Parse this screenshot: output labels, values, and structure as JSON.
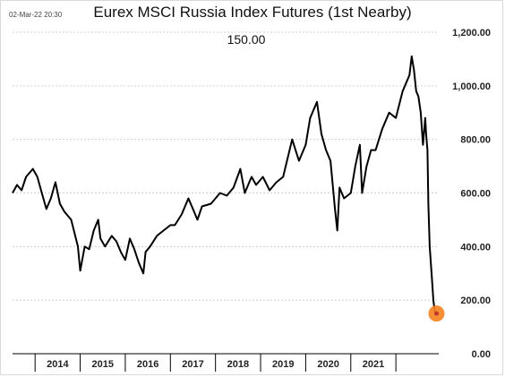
{
  "timestamp": "02-Mar-22 20:30",
  "chart_data": {
    "type": "line",
    "title": "Eurex MSCI Russia Index Futures (1st Nearby)",
    "annotation": "150.00",
    "xlabel": "",
    "ylabel": "",
    "ylim": [
      0,
      1200
    ],
    "y_ticks": [
      "0.00",
      "200.00",
      "400.00",
      "600.00",
      "800.00",
      "1,000.00",
      "1,200.00"
    ],
    "x_tick_labels": [
      "2014",
      "2015",
      "2016",
      "2017",
      "2018",
      "2019",
      "2020",
      "2021"
    ],
    "grid": true,
    "legend": "none",
    "line_color": "#000000",
    "marker_color": "#f58220",
    "last_value": 150,
    "series": [
      {
        "x": [
          2013.0,
          2013.1,
          2013.2,
          2013.3,
          2013.45,
          2013.55,
          2013.65,
          2013.75,
          2013.85,
          2013.95,
          2014.05,
          2014.15,
          2014.3,
          2014.45,
          2014.5,
          2014.6,
          2014.7,
          2014.8,
          2014.9,
          2014.95,
          2015.05,
          2015.2,
          2015.3,
          2015.4,
          2015.5,
          2015.6,
          2015.7,
          2015.8,
          2015.9,
          2015.95,
          2016.05,
          2016.2,
          2016.35,
          2016.5,
          2016.6,
          2016.75,
          2016.9,
          2017.0,
          2017.1,
          2017.2,
          2017.4,
          2017.5,
          2017.6,
          2017.75,
          2017.9,
          2018.05,
          2018.15,
          2018.25,
          2018.3,
          2018.4,
          2018.55,
          2018.7,
          2018.85,
          2019.0,
          2019.2,
          2019.35,
          2019.5,
          2019.6,
          2019.75,
          2019.85,
          2019.95,
          2020.05,
          2020.15,
          2020.2,
          2020.25,
          2020.35,
          2020.5,
          2020.6,
          2020.7,
          2020.75,
          2020.85,
          2020.95,
          2021.05,
          2021.2,
          2021.35,
          2021.5,
          2021.65,
          2021.8,
          2021.85,
          2021.9,
          2021.95,
          2022.0,
          2022.05,
          2022.1,
          2022.15,
          2022.17,
          2022.2,
          2022.22,
          2022.25,
          2022.3,
          2022.33,
          2022.36,
          2022.4
        ],
        "y": [
          600,
          630,
          610,
          660,
          690,
          660,
          600,
          540,
          580,
          640,
          560,
          530,
          500,
          400,
          310,
          400,
          390,
          460,
          500,
          430,
          400,
          440,
          420,
          380,
          350,
          430,
          390,
          340,
          300,
          380,
          400,
          440,
          460,
          480,
          480,
          520,
          580,
          540,
          500,
          550,
          560,
          580,
          600,
          590,
          620,
          690,
          600,
          640,
          660,
          630,
          660,
          610,
          640,
          660,
          800,
          720,
          780,
          880,
          940,
          820,
          760,
          720,
          540,
          460,
          620,
          580,
          600,
          700,
          780,
          600,
          700,
          760,
          760,
          840,
          900,
          880,
          980,
          1040,
          1110,
          1060,
          980,
          960,
          900,
          780,
          880,
          820,
          760,
          560,
          400,
          280,
          200,
          160,
          150
        ]
      }
    ]
  }
}
